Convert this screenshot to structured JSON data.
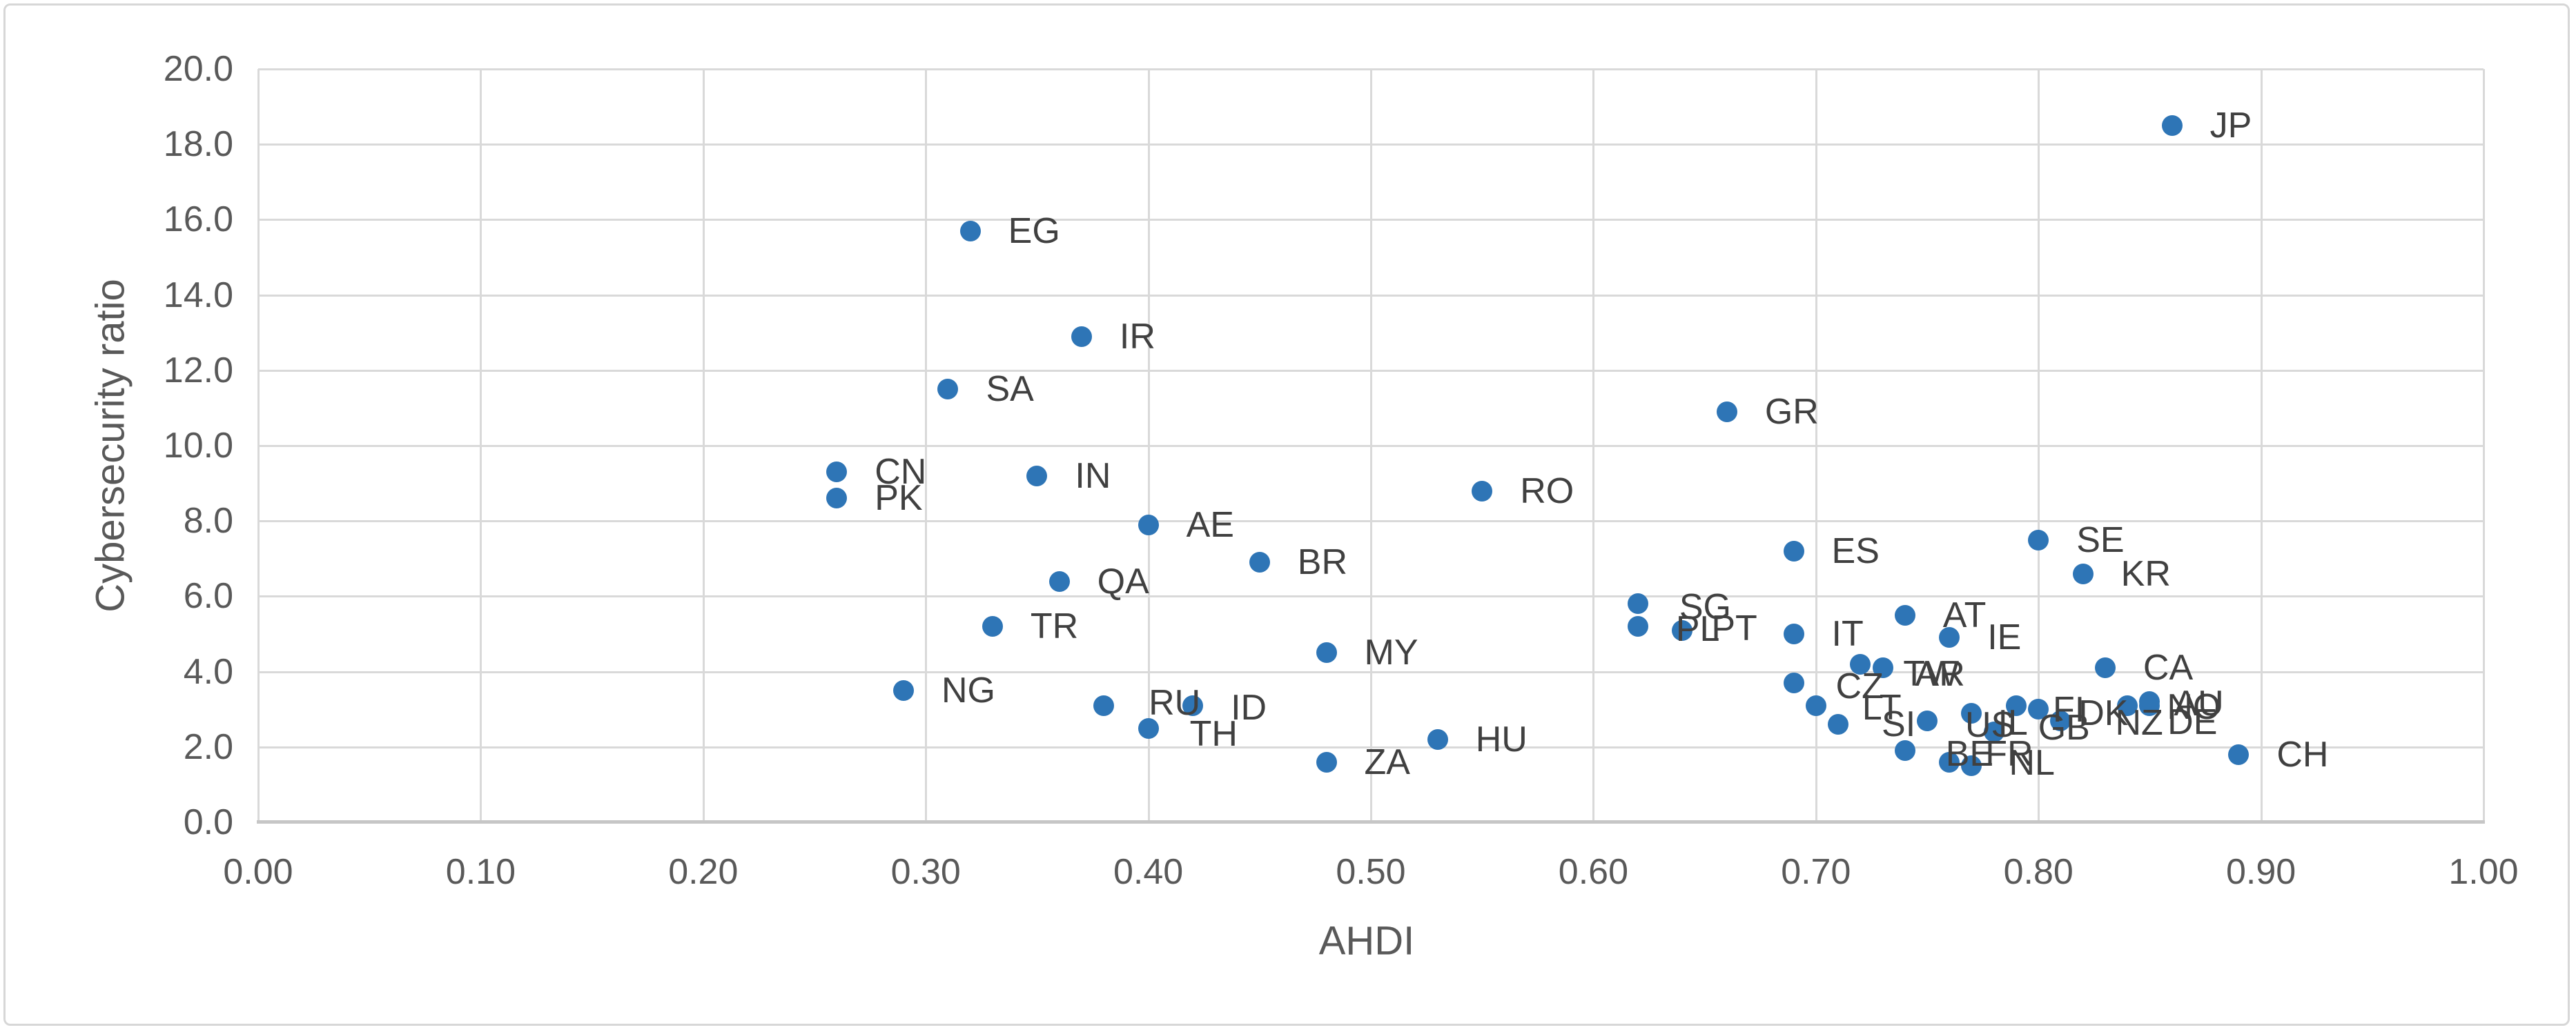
{
  "chart_data": {
    "type": "scatter",
    "title": "",
    "xlabel": "AHDI",
    "ylabel": "Cybersecurity ratio",
    "xlim": [
      0.0,
      1.0
    ],
    "ylim": [
      0.0,
      20.0
    ],
    "grid": true,
    "legend": false,
    "x_ticks": [
      "0.00",
      "0.10",
      "0.20",
      "0.30",
      "0.40",
      "0.50",
      "0.60",
      "0.70",
      "0.80",
      "0.90",
      "1.00"
    ],
    "y_ticks": [
      "0.0",
      "2.0",
      "4.0",
      "6.0",
      "8.0",
      "10.0",
      "12.0",
      "14.0",
      "16.0",
      "18.0",
      "20.0"
    ],
    "marker_color": "#2E75B6",
    "points": [
      {
        "label": "JP",
        "x": 0.86,
        "y": 18.5
      },
      {
        "label": "EG",
        "x": 0.32,
        "y": 15.7
      },
      {
        "label": "IR",
        "x": 0.37,
        "y": 12.9
      },
      {
        "label": "SA",
        "x": 0.31,
        "y": 11.5
      },
      {
        "label": "GR",
        "x": 0.66,
        "y": 10.9
      },
      {
        "label": "CN",
        "x": 0.26,
        "y": 9.3
      },
      {
        "label": "IN",
        "x": 0.35,
        "y": 9.2
      },
      {
        "label": "RO",
        "x": 0.55,
        "y": 8.8
      },
      {
        "label": "PK",
        "x": 0.26,
        "y": 8.6
      },
      {
        "label": "AE",
        "x": 0.4,
        "y": 7.9
      },
      {
        "label": "SE",
        "x": 0.8,
        "y": 7.5
      },
      {
        "label": "ES",
        "x": 0.69,
        "y": 7.2
      },
      {
        "label": "BR",
        "x": 0.45,
        "y": 6.9
      },
      {
        "label": "KR",
        "x": 0.82,
        "y": 6.6
      },
      {
        "label": "QA",
        "x": 0.36,
        "y": 6.4
      },
      {
        "label": "SG",
        "x": 0.62,
        "y": 5.8,
        "lox": 60,
        "loy": 5
      },
      {
        "label": "AT",
        "x": 0.74,
        "y": 5.5
      },
      {
        "label": "TR",
        "x": 0.33,
        "y": 5.2
      },
      {
        "label": "PL",
        "x": 0.62,
        "y": 5.2,
        "lox": 55,
        "loy": 4
      },
      {
        "label": "PT",
        "x": 0.64,
        "y": 5.1,
        "lox": 42,
        "loy": -3
      },
      {
        "label": "IT",
        "x": 0.69,
        "y": 5.0
      },
      {
        "label": "IE",
        "x": 0.76,
        "y": 4.9
      },
      {
        "label": "MY",
        "x": 0.48,
        "y": 4.5
      },
      {
        "label": "TW",
        "x": 0.72,
        "y": 4.2,
        "lox": 62,
        "loy": 14
      },
      {
        "label": "AR",
        "x": 0.73,
        "y": 4.1,
        "lox": 47,
        "loy": 9
      },
      {
        "label": "CA",
        "x": 0.83,
        "y": 4.1
      },
      {
        "label": "CZ",
        "x": 0.69,
        "y": 3.7,
        "lox": 61,
        "loy": 5
      },
      {
        "label": "NG",
        "x": 0.29,
        "y": 3.5
      },
      {
        "label": "AU",
        "x": 0.85,
        "y": 3.2,
        "lox": 35,
        "loy": 3
      },
      {
        "label": "RU",
        "x": 0.38,
        "y": 3.1,
        "lox": 65,
        "loy": -4
      },
      {
        "label": "LT",
        "x": 0.7,
        "y": 3.1,
        "lox": 67,
        "loy": 3
      },
      {
        "label": "ID",
        "x": 0.42,
        "y": 3.1,
        "lox": 55,
        "loy": 3
      },
      {
        "label": "FI",
        "x": 0.79,
        "y": 3.1,
        "lox": 53,
        "loy": 6
      },
      {
        "label": "DE",
        "x": 0.84,
        "y": 3.1,
        "lox": 58,
        "loy": 24
      },
      {
        "label": "NO",
        "x": 0.85,
        "y": 3.1,
        "lox": 25,
        "loy": 2
      },
      {
        "label": "DK",
        "x": 0.8,
        "y": 3.0,
        "lox": 58,
        "loy": 6
      },
      {
        "label": "IL",
        "x": 0.77,
        "y": 2.9,
        "lox": 38,
        "loy": 14
      },
      {
        "label": "NZ",
        "x": 0.81,
        "y": 2.7,
        "lox": 79,
        "loy": 3
      },
      {
        "label": "US",
        "x": 0.75,
        "y": 2.7,
        "lox": 55,
        "loy": 6
      },
      {
        "label": "SI",
        "x": 0.71,
        "y": 2.6,
        "lox": 63,
        "loy": 0
      },
      {
        "label": "TH",
        "x": 0.4,
        "y": 2.5,
        "lox": 60,
        "loy": 8
      },
      {
        "label": "GB",
        "x": 0.78,
        "y": 2.4,
        "lox": 64,
        "loy": -6
      },
      {
        "label": "HU",
        "x": 0.53,
        "y": 2.2
      },
      {
        "label": "BE",
        "x": 0.74,
        "y": 1.9,
        "lox": 59,
        "loy": 5
      },
      {
        "label": "CH",
        "x": 0.89,
        "y": 1.8
      },
      {
        "label": "ZA",
        "x": 0.48,
        "y": 1.6
      },
      {
        "label": "FR",
        "x": 0.76,
        "y": 1.6,
        "lox": 52,
        "loy": -12
      },
      {
        "label": "NL",
        "x": 0.77,
        "y": 1.5,
        "lox": 54,
        "loy": -4
      }
    ]
  },
  "colors": {
    "marker": "#2E75B6",
    "gridline": "#D9D9D9",
    "axis_line": "#C6C6C6",
    "tick_text": "#595959",
    "label_text": "#404040",
    "frame_border": "#D7D7D7",
    "background": "#FFFFFF"
  }
}
